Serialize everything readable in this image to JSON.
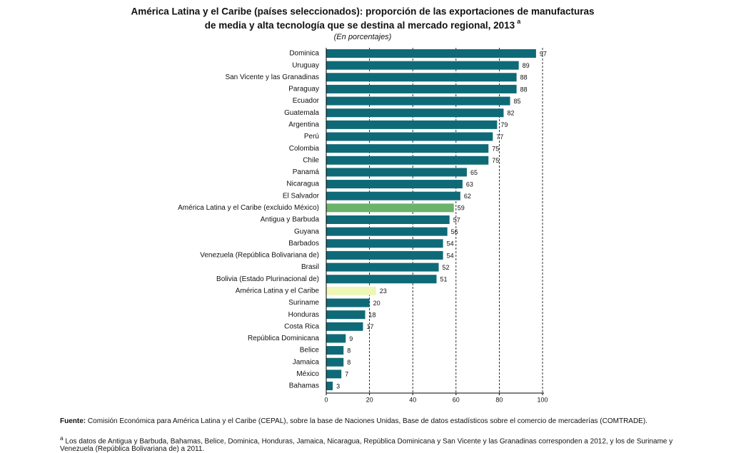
{
  "chart_data": {
    "type": "bar",
    "orientation": "horizontal",
    "title": [
      "América Latina y el Caribe (países seleccionados): proporción de las exportaciones de manufacturas",
      "de media y alta tecnología que se destina al mercado regional, 2013"
    ],
    "title_superscript": "a",
    "subtitle": "(En porcentajes)",
    "categories": [
      "Dominica",
      "Uruguay",
      "San Vicente y las Granadinas",
      "Paraguay",
      "Ecuador",
      "Guatemala",
      "Argentina",
      "Perú",
      "Colombia",
      "Chile",
      "Panamá",
      "Nicaragua",
      "El Salvador",
      "América Latina y el Caribe (excluido México)",
      "Antigua y Barbuda",
      "Guyana",
      "Barbados",
      "Venezuela (República Bolivariana de)",
      "Brasil",
      "Bolivia (Estado Plurinacional de)",
      "América Latina y el Caribe",
      "Suriname",
      "Honduras",
      "Costa Rica",
      "República Dominicana",
      "Belice",
      "Jamaica",
      "México",
      "Bahamas"
    ],
    "values": [
      97,
      89,
      88,
      88,
      85,
      82,
      79,
      77,
      75,
      75,
      65,
      63,
      62,
      59,
      57,
      56,
      54,
      54,
      52,
      51,
      23,
      20,
      18,
      17,
      9,
      8,
      8,
      7,
      3
    ],
    "colors": [
      "#0f6a78",
      "#0f6a78",
      "#0f6a78",
      "#0f6a78",
      "#0f6a78",
      "#0f6a78",
      "#0f6a78",
      "#0f6a78",
      "#0f6a78",
      "#0f6a78",
      "#0f6a78",
      "#0f6a78",
      "#0f6a78",
      "#6bb26a",
      "#0f6a78",
      "#0f6a78",
      "#0f6a78",
      "#0f6a78",
      "#0f6a78",
      "#0f6a78",
      "#eef6b8",
      "#0f6a78",
      "#0f6a78",
      "#0f6a78",
      "#0f6a78",
      "#0f6a78",
      "#0f6a78",
      "#0f6a78",
      "#0f6a78"
    ],
    "xlim": [
      0,
      100
    ],
    "xticks": [
      0,
      20,
      40,
      60,
      80,
      100
    ],
    "grid": true
  },
  "notes": {
    "source_label": "Fuente",
    "source": "Comisión Económica para América Latina y el Caribe (CEPAL), sobre la base de Naciones Unidas, Base de datos estadísticos sobre el comercio de mercaderías (COMTRADE).",
    "note_marker": "a",
    "note": "Los datos de Antigua y Barbuda, Bahamas, Belice, Dominica, Honduras, Jamaica, Nicaragua, República Dominicana y San Vicente y las Granadinas corresponden a 2012, y los de Suriname y Venezuela (República Bolivariana de) a 2011."
  }
}
